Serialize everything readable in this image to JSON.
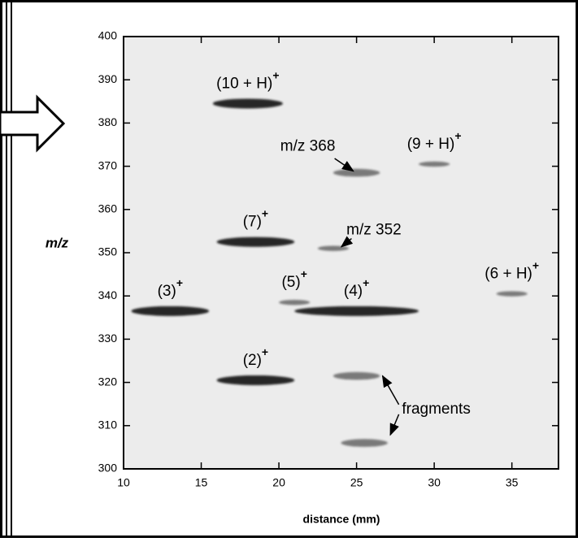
{
  "chart_data": {
    "type": "scatter",
    "x_label": "distance (mm)",
    "y_label": "m/z",
    "xlim": [
      10,
      38
    ],
    "ylim": [
      300,
      400
    ],
    "xticks": [
      10,
      15,
      20,
      25,
      30,
      35
    ],
    "yticks": [
      300,
      310,
      320,
      330,
      340,
      350,
      360,
      370,
      380,
      390,
      400
    ],
    "color": "#1a1a1a",
    "x": [
      18,
      25,
      30,
      18.5,
      23.5,
      13,
      21,
      25,
      35,
      18.5,
      25,
      25.5
    ],
    "values": [
      384.5,
      368.5,
      370.5,
      352.5,
      351,
      336.5,
      338.5,
      336.5,
      340.5,
      320.5,
      321.5,
      306
    ],
    "widths": [
      4.5,
      3,
      2,
      5,
      2,
      5,
      2,
      8,
      2,
      5,
      3,
      3
    ],
    "labels": [
      "(10 + H)",
      "m/z 368",
      "(9 + H)",
      "(7)",
      "m/z 352",
      "(3)",
      "(5)",
      "(4)",
      "(6 + H)",
      "(2)",
      null,
      null
    ],
    "superscripts": [
      "+",
      null,
      "+",
      "+",
      null,
      "+",
      "+",
      "+",
      "+",
      "+",
      null,
      null
    ],
    "fragments_label": "fragments"
  }
}
